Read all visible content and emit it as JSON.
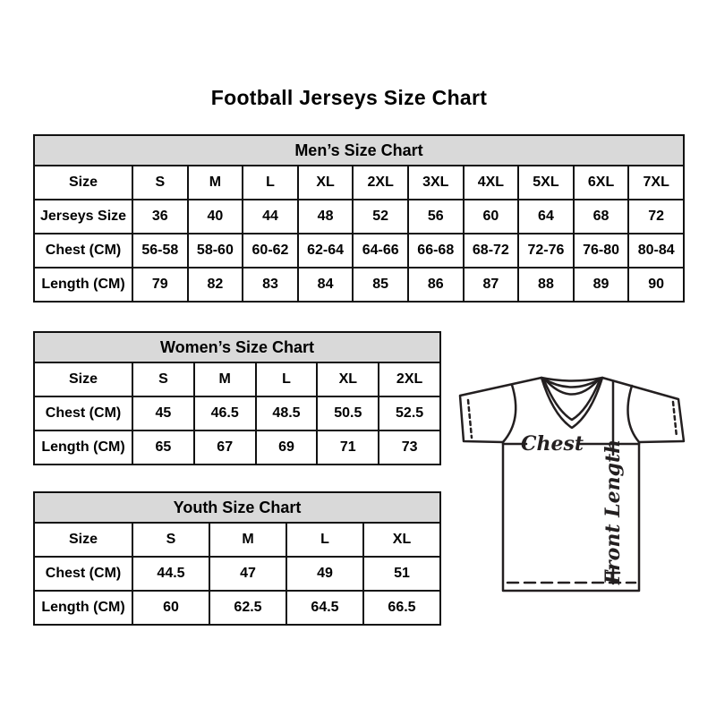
{
  "title": "Football Jerseys Size Chart",
  "tables": [
    {
      "id": "men",
      "header": "Men’s Size Chart",
      "rows": [
        [
          "Size",
          "S",
          "M",
          "L",
          "XL",
          "2XL",
          "3XL",
          "4XL",
          "5XL",
          "6XL",
          "7XL"
        ],
        [
          "Jerseys Size",
          "36",
          "40",
          "44",
          "48",
          "52",
          "56",
          "60",
          "64",
          "68",
          "72"
        ],
        [
          "Chest (CM)",
          "56-58",
          "58-60",
          "60-62",
          "62-64",
          "64-66",
          "66-68",
          "68-72",
          "72-76",
          "76-80",
          "80-84"
        ],
        [
          "Length (CM)",
          "79",
          "82",
          "83",
          "84",
          "85",
          "86",
          "87",
          "88",
          "89",
          "90"
        ]
      ]
    },
    {
      "id": "women",
      "header": "Women’s Size Chart",
      "rows": [
        [
          "Size",
          "S",
          "M",
          "L",
          "XL",
          "2XL"
        ],
        [
          "Chest (CM)",
          "45",
          "46.5",
          "48.5",
          "50.5",
          "52.5"
        ],
        [
          "Length (CM)",
          "65",
          "67",
          "69",
          "71",
          "73"
        ]
      ]
    },
    {
      "id": "youth",
      "header": "Youth Size Chart",
      "rows": [
        [
          "Size",
          "S",
          "M",
          "L",
          "XL"
        ],
        [
          "Chest (CM)",
          "44.5",
          "47",
          "49",
          "51"
        ],
        [
          "Length (CM)",
          "60",
          "62.5",
          "64.5",
          "66.5"
        ]
      ]
    }
  ],
  "diagram": {
    "chest_label": "Chest",
    "front_length_label": "Front Length"
  },
  "colors": {
    "table_header_bg": "#d9d9d9",
    "table_border": "#111111",
    "text": "#000000",
    "diagram_stroke": "#231f20"
  }
}
